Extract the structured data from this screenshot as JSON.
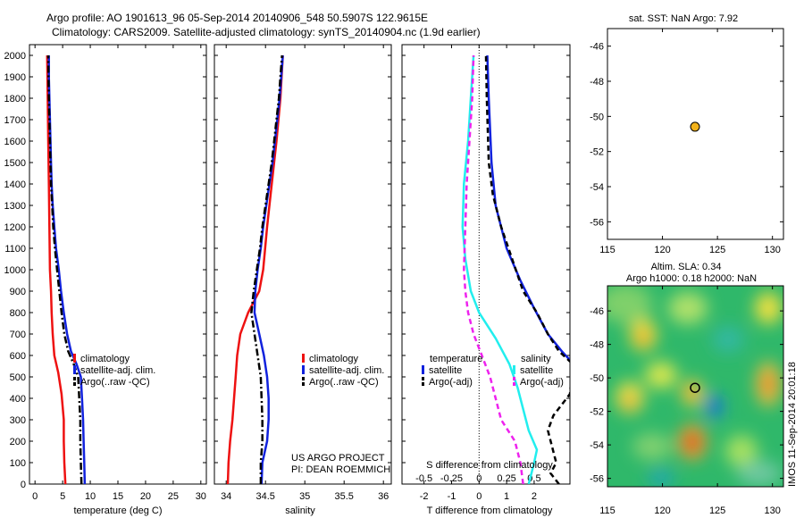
{
  "header": {
    "line1": "Argo profile: AO 1901613_96 05-Sep-2014 20140906_548 50.5907S 122.9615E",
    "line2": "Climatology: CARS2009. Satellite-adjusted climatology: synTS_20140904.nc (1.9d earlier)"
  },
  "colors": {
    "red": "#ee1111",
    "blue": "#1122dd",
    "black": "#000000",
    "cyan": "#22eeee",
    "magenta": "#ee22ee",
    "marker": "#f2b21a"
  },
  "credits": {
    "project": "US ARGO PROJECT",
    "pi": "PI: DEAN ROEMMICH"
  },
  "imos_stamp": "IMOS 11-Sep-2014 20:01:18",
  "chart_data": [
    {
      "type": "line",
      "id": "temperature",
      "xlabel": "temperature (deg C)",
      "xlim": [
        -1,
        31
      ],
      "ylim": [
        2050,
        0
      ],
      "xticks": [
        "0",
        "5",
        "10",
        "15",
        "20",
        "25",
        "30"
      ],
      "yticks": [
        "0",
        "100",
        "200",
        "300",
        "400",
        "500",
        "600",
        "700",
        "800",
        "900",
        "1000",
        "1100",
        "1200",
        "1300",
        "1400",
        "1500",
        "1600",
        "1700",
        "1800",
        "1900",
        "2000"
      ],
      "legend": [
        "climatology",
        "satellite-adj. clim.",
        "Argo(..raw -QC)"
      ],
      "series": [
        {
          "name": "climatology",
          "color": "red",
          "style": "solid",
          "points": [
            [
              5.5,
              0
            ],
            [
              5.3,
              100
            ],
            [
              5.2,
              200
            ],
            [
              5.2,
              300
            ],
            [
              4.8,
              420
            ],
            [
              4.2,
              520
            ],
            [
              3.5,
              600
            ],
            [
              3.2,
              700
            ],
            [
              3.0,
              800
            ],
            [
              2.9,
              900
            ],
            [
              2.7,
              1000
            ],
            [
              2.6,
              1200
            ],
            [
              2.5,
              1400
            ],
            [
              2.4,
              1600
            ],
            [
              2.3,
              1800
            ],
            [
              2.2,
              2000
            ]
          ]
        },
        {
          "name": "satellite-adj. clim.",
          "color": "blue",
          "style": "solid",
          "points": [
            [
              9.0,
              0
            ],
            [
              8.9,
              100
            ],
            [
              8.8,
              200
            ],
            [
              8.7,
              300
            ],
            [
              8.5,
              400
            ],
            [
              8.3,
              500
            ],
            [
              7.5,
              560
            ],
            [
              6.5,
              620
            ],
            [
              5.8,
              700
            ],
            [
              5.2,
              800
            ],
            [
              4.7,
              900
            ],
            [
              4.3,
              1000
            ],
            [
              3.8,
              1100
            ],
            [
              3.5,
              1200
            ],
            [
              3.2,
              1300
            ],
            [
              3.0,
              1400
            ],
            [
              2.9,
              1500
            ],
            [
              2.8,
              1600
            ],
            [
              2.7,
              1700
            ],
            [
              2.6,
              1800
            ],
            [
              2.5,
              1900
            ],
            [
              2.5,
              2000
            ]
          ]
        },
        {
          "name": "Argo(..raw -QC)",
          "color": "black",
          "style": "dashdot",
          "points": [
            [
              8.4,
              0
            ],
            [
              8.3,
              100
            ],
            [
              8.2,
              200
            ],
            [
              8.2,
              300
            ],
            [
              8.0,
              400
            ],
            [
              7.8,
              500
            ],
            [
              7.0,
              560
            ],
            [
              6.0,
              620
            ],
            [
              5.3,
              700
            ],
            [
              4.8,
              800
            ],
            [
              4.4,
              900
            ],
            [
              4.0,
              1000
            ],
            [
              3.6,
              1100
            ],
            [
              3.3,
              1200
            ],
            [
              3.1,
              1300
            ],
            [
              2.9,
              1400
            ],
            [
              2.8,
              1500
            ],
            [
              2.7,
              1600
            ],
            [
              2.6,
              1700
            ],
            [
              2.5,
              1800
            ],
            [
              2.45,
              1900
            ],
            [
              2.4,
              2000
            ]
          ]
        }
      ]
    },
    {
      "type": "line",
      "id": "salinity",
      "xlabel": "salinity",
      "xlim": [
        33.85,
        36.1
      ],
      "ylim": [
        2050,
        0
      ],
      "xticks": [
        "34",
        "34.5",
        "35",
        "35.5",
        "36"
      ],
      "legend": [
        "climatology",
        "satellite-adj. clim.",
        "Argo(..raw -QC)"
      ],
      "series": [
        {
          "name": "climatology",
          "color": "red",
          "style": "solid",
          "points": [
            [
              34.02,
              0
            ],
            [
              34.03,
              100
            ],
            [
              34.05,
              200
            ],
            [
              34.08,
              300
            ],
            [
              34.1,
              400
            ],
            [
              34.12,
              500
            ],
            [
              34.14,
              600
            ],
            [
              34.18,
              700
            ],
            [
              34.28,
              800
            ],
            [
              34.42,
              900
            ],
            [
              34.47,
              1000
            ],
            [
              34.52,
              1200
            ],
            [
              34.58,
              1400
            ],
            [
              34.64,
              1600
            ],
            [
              34.69,
              1800
            ],
            [
              34.72,
              2000
            ]
          ]
        },
        {
          "name": "satellite-adj. clim.",
          "color": "blue",
          "style": "solid",
          "points": [
            [
              34.45,
              0
            ],
            [
              34.46,
              100
            ],
            [
              34.52,
              200
            ],
            [
              34.54,
              300
            ],
            [
              34.54,
              400
            ],
            [
              34.52,
              500
            ],
            [
              34.48,
              600
            ],
            [
              34.42,
              700
            ],
            [
              34.36,
              800
            ],
            [
              34.37,
              900
            ],
            [
              34.4,
              1000
            ],
            [
              34.44,
              1100
            ],
            [
              34.47,
              1200
            ],
            [
              34.51,
              1300
            ],
            [
              34.55,
              1400
            ],
            [
              34.59,
              1500
            ],
            [
              34.62,
              1600
            ],
            [
              34.65,
              1700
            ],
            [
              34.68,
              1800
            ],
            [
              34.7,
              1900
            ],
            [
              34.72,
              2000
            ]
          ]
        },
        {
          "name": "Argo(..raw -QC)",
          "color": "black",
          "style": "dashdot",
          "points": [
            [
              34.44,
              0
            ],
            [
              34.44,
              100
            ],
            [
              34.46,
              200
            ],
            [
              34.46,
              300
            ],
            [
              34.45,
              400
            ],
            [
              34.44,
              500
            ],
            [
              34.4,
              600
            ],
            [
              34.36,
              700
            ],
            [
              34.32,
              800
            ],
            [
              34.35,
              900
            ],
            [
              34.39,
              1000
            ],
            [
              34.43,
              1100
            ],
            [
              34.46,
              1200
            ],
            [
              34.5,
              1300
            ],
            [
              34.54,
              1400
            ],
            [
              34.58,
              1500
            ],
            [
              34.61,
              1600
            ],
            [
              34.64,
              1700
            ],
            [
              34.67,
              1800
            ],
            [
              34.69,
              1900
            ],
            [
              34.71,
              2000
            ]
          ]
        }
      ]
    },
    {
      "type": "line",
      "id": "difference",
      "xlabel": "T difference from climatology",
      "xlabel2": "S difference from climatology",
      "xlim": [
        -2.8,
        3.3
      ],
      "ylim": [
        2050,
        0
      ],
      "xticks": [
        "-2",
        "-1",
        "0",
        "1",
        "2"
      ],
      "xticks2": [
        "-0.5",
        "-0.25",
        "0",
        "0.25",
        "0.5"
      ],
      "legend": {
        "temperature_header": "temperature",
        "salinity_header": "salinity",
        "entries": [
          "satellite",
          "Argo(-adj)",
          "satellite",
          "Argo(-adj)"
        ]
      },
      "series": [
        {
          "name": "satellite",
          "group": "temperature",
          "color": "blue",
          "style": "solid",
          "points": [
            [
              3.5,
              550
            ],
            [
              3.0,
              620
            ],
            [
              2.5,
              700
            ],
            [
              2.0,
              820
            ],
            [
              1.5,
              950
            ],
            [
              1.0,
              1100
            ],
            [
              0.6,
              1300
            ],
            [
              0.45,
              1500
            ],
            [
              0.35,
              1800
            ],
            [
              0.3,
              2000
            ]
          ]
        },
        {
          "name": "Argo(-adj)",
          "group": "temperature",
          "color": "black",
          "style": "dashed",
          "points": [
            [
              2.9,
              0
            ],
            [
              2.6,
              50
            ],
            [
              2.8,
              100
            ],
            [
              2.7,
              150
            ],
            [
              2.5,
              250
            ],
            [
              2.7,
              320
            ],
            [
              3.3,
              420
            ],
            [
              3.4,
              560
            ],
            [
              2.9,
              620
            ],
            [
              2.5,
              700
            ],
            [
              2.1,
              800
            ],
            [
              1.6,
              900
            ],
            [
              1.2,
              1050
            ],
            [
              0.8,
              1200
            ],
            [
              0.5,
              1350
            ],
            [
              0.35,
              1500
            ],
            [
              0.28,
              1800
            ],
            [
              0.25,
              2000
            ]
          ]
        },
        {
          "name": "satellite",
          "group": "salinity",
          "color": "cyan",
          "style": "solid",
          "points": [
            [
              1.8,
              0
            ],
            [
              1.9,
              50
            ],
            [
              2.0,
              100
            ],
            [
              2.1,
              160
            ],
            [
              1.8,
              250
            ],
            [
              1.6,
              350
            ],
            [
              1.4,
              450
            ],
            [
              1.1,
              560
            ],
            [
              0.6,
              680
            ],
            [
              0.0,
              800
            ],
            [
              -0.3,
              900
            ],
            [
              -0.5,
              1050
            ],
            [
              -0.6,
              1200
            ],
            [
              -0.55,
              1400
            ],
            [
              -0.4,
              1600
            ],
            [
              -0.3,
              1800
            ],
            [
              -0.2,
              2000
            ]
          ]
        },
        {
          "name": "Argo(-adj)",
          "group": "salinity",
          "color": "magenta",
          "style": "dashed",
          "points": [
            [
              1.6,
              0
            ],
            [
              1.5,
              100
            ],
            [
              1.3,
              200
            ],
            [
              0.8,
              300
            ],
            [
              0.6,
              400
            ],
            [
              0.4,
              500
            ],
            [
              0.1,
              600
            ],
            [
              -0.2,
              700
            ],
            [
              -0.4,
              800
            ],
            [
              -0.5,
              900
            ],
            [
              -0.55,
              1000
            ],
            [
              -0.5,
              1200
            ],
            [
              -0.45,
              1400
            ],
            [
              -0.35,
              1600
            ],
            [
              -0.25,
              1800
            ],
            [
              -0.2,
              2000
            ]
          ]
        }
      ]
    },
    {
      "type": "scatter",
      "id": "sst_map",
      "title": "sat. SST: NaN Argo: 7.92",
      "xlim": [
        115,
        131
      ],
      "ylim": [
        -57,
        -45
      ],
      "xticks": [
        "115",
        "120",
        "125",
        "130"
      ],
      "yticks": [
        "-46",
        "-48",
        "-50",
        "-52",
        "-54",
        "-56"
      ],
      "points": [
        [
          122.96,
          -50.59
        ]
      ]
    },
    {
      "type": "heatmap",
      "id": "sla_map",
      "title": "Altim. SLA: 0.34",
      "subtitle": "Argo h1000: 0.18 h2000: NaN",
      "xlim": [
        115,
        131
      ],
      "ylim": [
        -56.5,
        -44.5
      ],
      "xticks": [
        "115",
        "120",
        "125",
        "130"
      ],
      "yticks": [
        "-46",
        "-48",
        "-50",
        "-52",
        "-54",
        "-56"
      ],
      "points": [
        [
          122.96,
          -50.59
        ]
      ]
    }
  ]
}
